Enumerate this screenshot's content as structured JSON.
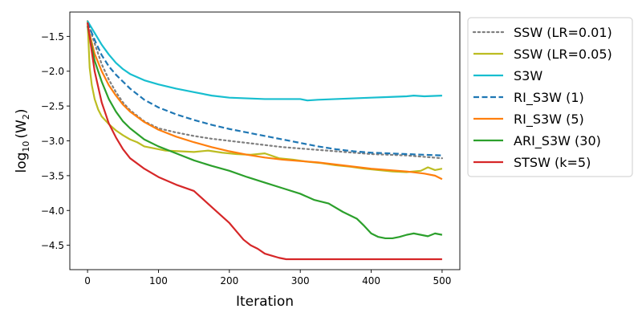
{
  "chart_data": {
    "type": "line",
    "title": "",
    "xlabel": "Iteration",
    "ylabel_base": "log",
    "ylabel_sub": "10",
    "ylabel_arg": "(W",
    "ylabel_arg_sub": "2",
    "ylabel_close": ")",
    "xlim": [
      -25,
      525
    ],
    "ylim": [
      -4.85,
      -1.15
    ],
    "xticks": [
      0,
      100,
      200,
      300,
      400,
      500
    ],
    "xtick_labels": [
      "0",
      "100",
      "200",
      "300",
      "400",
      "500"
    ],
    "yticks": [
      -1.5,
      -2.0,
      -2.5,
      -3.0,
      -3.5,
      -4.0,
      -4.5
    ],
    "ytick_labels": [
      "−1.5",
      "−2.0",
      "−2.5",
      "−3.0",
      "−3.5",
      "−4.0",
      "−4.5"
    ],
    "grid": false,
    "legend_position": "outside-right",
    "series": [
      {
        "name": "SSW (LR=0.01)",
        "color": "#7f7f7f",
        "style": "dotted",
        "x": [
          0,
          10,
          20,
          30,
          40,
          50,
          60,
          80,
          100,
          125,
          150,
          175,
          200,
          225,
          250,
          275,
          300,
          325,
          350,
          375,
          400,
          425,
          450,
          475,
          500
        ],
        "y": [
          -1.28,
          -1.6,
          -1.9,
          -2.12,
          -2.3,
          -2.45,
          -2.56,
          -2.72,
          -2.82,
          -2.88,
          -2.93,
          -2.97,
          -3.0,
          -3.03,
          -3.06,
          -3.09,
          -3.11,
          -3.13,
          -3.15,
          -3.17,
          -3.19,
          -3.2,
          -3.21,
          -3.23,
          -3.25
        ]
      },
      {
        "name": "SSW (LR=0.05)",
        "color": "#bcbd22",
        "style": "solid",
        "x": [
          0,
          3,
          6,
          10,
          15,
          20,
          30,
          40,
          50,
          60,
          70,
          80,
          90,
          100,
          110,
          130,
          150,
          170,
          190,
          210,
          230,
          250,
          270,
          290,
          310,
          330,
          350,
          370,
          390,
          410,
          430,
          450,
          470,
          480,
          490,
          500
        ],
        "y": [
          -1.28,
          -1.95,
          -2.2,
          -2.4,
          -2.55,
          -2.65,
          -2.76,
          -2.85,
          -2.92,
          -2.98,
          -3.02,
          -3.08,
          -3.1,
          -3.12,
          -3.14,
          -3.15,
          -3.16,
          -3.14,
          -3.17,
          -3.19,
          -3.2,
          -3.18,
          -3.25,
          -3.27,
          -3.3,
          -3.32,
          -3.35,
          -3.37,
          -3.4,
          -3.42,
          -3.44,
          -3.45,
          -3.43,
          -3.38,
          -3.42,
          -3.4
        ]
      },
      {
        "name": "S3W",
        "color": "#17becf",
        "style": "solid",
        "x": [
          0,
          10,
          20,
          30,
          40,
          50,
          60,
          80,
          100,
          125,
          150,
          175,
          200,
          225,
          250,
          275,
          300,
          310,
          325,
          350,
          375,
          400,
          425,
          450,
          460,
          475,
          500
        ],
        "y": [
          -1.28,
          -1.45,
          -1.62,
          -1.76,
          -1.88,
          -1.97,
          -2.04,
          -2.13,
          -2.19,
          -2.25,
          -2.3,
          -2.35,
          -2.38,
          -2.39,
          -2.4,
          -2.4,
          -2.4,
          -2.42,
          -2.41,
          -2.4,
          -2.39,
          -2.38,
          -2.37,
          -2.36,
          -2.35,
          -2.36,
          -2.35
        ]
      },
      {
        "name": "RI_S3W (1)",
        "color": "#1f77b4",
        "style": "dashed",
        "x": [
          0,
          10,
          20,
          30,
          40,
          50,
          60,
          80,
          100,
          125,
          150,
          175,
          200,
          225,
          250,
          275,
          300,
          325,
          350,
          375,
          400,
          425,
          450,
          475,
          500
        ],
        "y": [
          -1.3,
          -1.55,
          -1.77,
          -1.93,
          -2.05,
          -2.15,
          -2.25,
          -2.41,
          -2.52,
          -2.62,
          -2.7,
          -2.77,
          -2.83,
          -2.88,
          -2.93,
          -2.98,
          -3.03,
          -3.08,
          -3.12,
          -3.15,
          -3.17,
          -3.18,
          -3.19,
          -3.2,
          -3.21
        ]
      },
      {
        "name": "RI_S3W (5)",
        "color": "#ff7f0e",
        "style": "solid",
        "x": [
          0,
          10,
          20,
          30,
          40,
          50,
          60,
          80,
          100,
          125,
          150,
          175,
          200,
          225,
          250,
          275,
          300,
          325,
          350,
          375,
          400,
          425,
          450,
          475,
          490,
          500
        ],
        "y": [
          -1.35,
          -1.75,
          -2.0,
          -2.2,
          -2.35,
          -2.48,
          -2.58,
          -2.73,
          -2.84,
          -2.94,
          -3.02,
          -3.09,
          -3.15,
          -3.2,
          -3.24,
          -3.27,
          -3.29,
          -3.31,
          -3.34,
          -3.37,
          -3.4,
          -3.42,
          -3.44,
          -3.47,
          -3.5,
          -3.55
        ]
      },
      {
        "name": "ARI_S3W (30)",
        "color": "#2ca02c",
        "style": "solid",
        "x": [
          0,
          10,
          20,
          30,
          40,
          50,
          60,
          80,
          100,
          125,
          150,
          175,
          200,
          225,
          250,
          275,
          300,
          320,
          340,
          360,
          380,
          390,
          400,
          410,
          420,
          430,
          440,
          450,
          460,
          470,
          480,
          490,
          500
        ],
        "y": [
          -1.35,
          -1.85,
          -2.15,
          -2.4,
          -2.58,
          -2.72,
          -2.82,
          -2.98,
          -3.08,
          -3.18,
          -3.28,
          -3.36,
          -3.43,
          -3.52,
          -3.6,
          -3.68,
          -3.76,
          -3.85,
          -3.9,
          -4.02,
          -4.12,
          -4.22,
          -4.33,
          -4.38,
          -4.4,
          -4.4,
          -4.38,
          -4.35,
          -4.33,
          -4.35,
          -4.37,
          -4.33,
          -4.35
        ]
      },
      {
        "name": "STSW (k=5)",
        "color": "#d62728",
        "style": "solid",
        "x": [
          0,
          10,
          20,
          30,
          40,
          50,
          60,
          80,
          100,
          125,
          150,
          175,
          200,
          210,
          220,
          230,
          240,
          250,
          260,
          270,
          280,
          290,
          300,
          350,
          400,
          450,
          500
        ],
        "y": [
          -1.3,
          -2.0,
          -2.45,
          -2.75,
          -2.95,
          -3.12,
          -3.25,
          -3.4,
          -3.52,
          -3.63,
          -3.72,
          -3.95,
          -4.18,
          -4.3,
          -4.42,
          -4.5,
          -4.55,
          -4.62,
          -4.65,
          -4.68,
          -4.7,
          -4.7,
          -4.7,
          -4.7,
          -4.7,
          -4.7,
          -4.7
        ]
      }
    ]
  }
}
